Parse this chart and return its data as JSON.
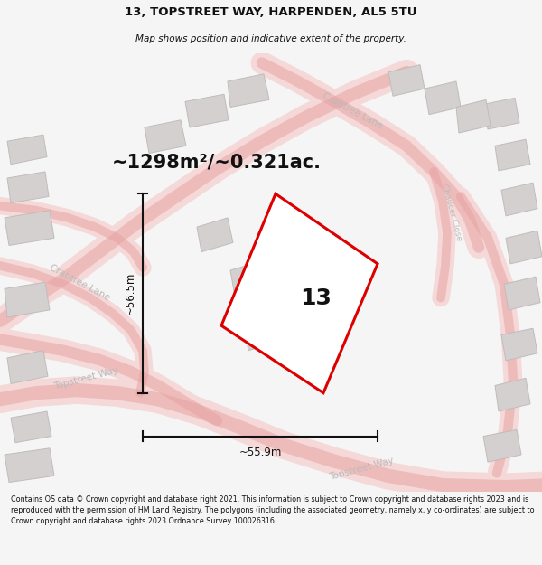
{
  "title_line1": "13, TOPSTREET WAY, HARPENDEN, AL5 5TU",
  "title_line2": "Map shows position and indicative extent of the property.",
  "area_text": "~1298m²/~0.321ac.",
  "label_number": "13",
  "dim_horizontal": "~55.9m",
  "dim_vertical": "~56.5m",
  "footer_text": "Contains OS data © Crown copyright and database right 2021. This information is subject to Crown copyright and database rights 2023 and is reproduced with the permission of HM Land Registry. The polygons (including the associated geometry, namely x, y co-ordinates) are subject to Crown copyright and database rights 2023 Ordnance Survey 100026316.",
  "bg_color": "#f5f5f5",
  "map_bg": "#f0eeee",
  "road_fill": "#f5d8d8",
  "road_edge": "#e8a0a0",
  "building_fill": "#d4d0d0",
  "building_stroke": "#c0bcbc",
  "plot_color": "#dd0000",
  "plot_fill": "#ffffff",
  "dim_color": "#111111",
  "text_color": "#111111",
  "area_color": "#111111",
  "street_label_color": "#bbbbbb"
}
